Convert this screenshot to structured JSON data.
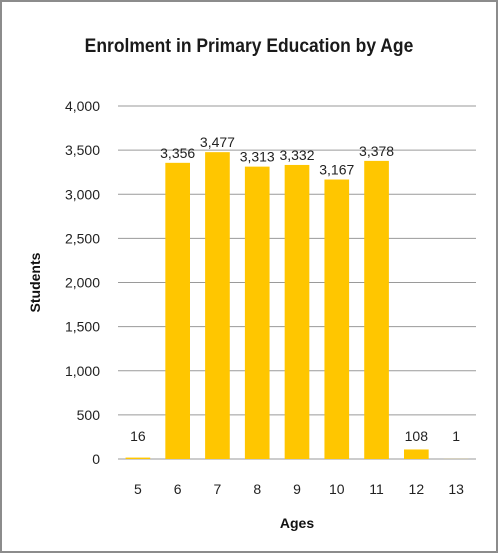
{
  "chart_data": {
    "type": "bar",
    "title": "Enrolment in Primary Education by Age",
    "xlabel": "Ages",
    "ylabel": "Students",
    "categories": [
      "5",
      "6",
      "7",
      "8",
      "9",
      "10",
      "11",
      "12",
      "13"
    ],
    "values": [
      16,
      3356,
      3477,
      3313,
      3332,
      3167,
      3378,
      108,
      1
    ],
    "data_labels": [
      "16",
      "3,356",
      "3,477",
      "3,313",
      "3,332",
      "3,167",
      "3,378",
      "108",
      "1"
    ],
    "ylim": [
      0,
      4000
    ],
    "yticks": [
      "0",
      "500",
      "1,000",
      "1,500",
      "2,000",
      "2,500",
      "3,000",
      "3,500",
      "4,000"
    ],
    "grid": true,
    "legend": "none",
    "bar_color": "#FFC600"
  }
}
